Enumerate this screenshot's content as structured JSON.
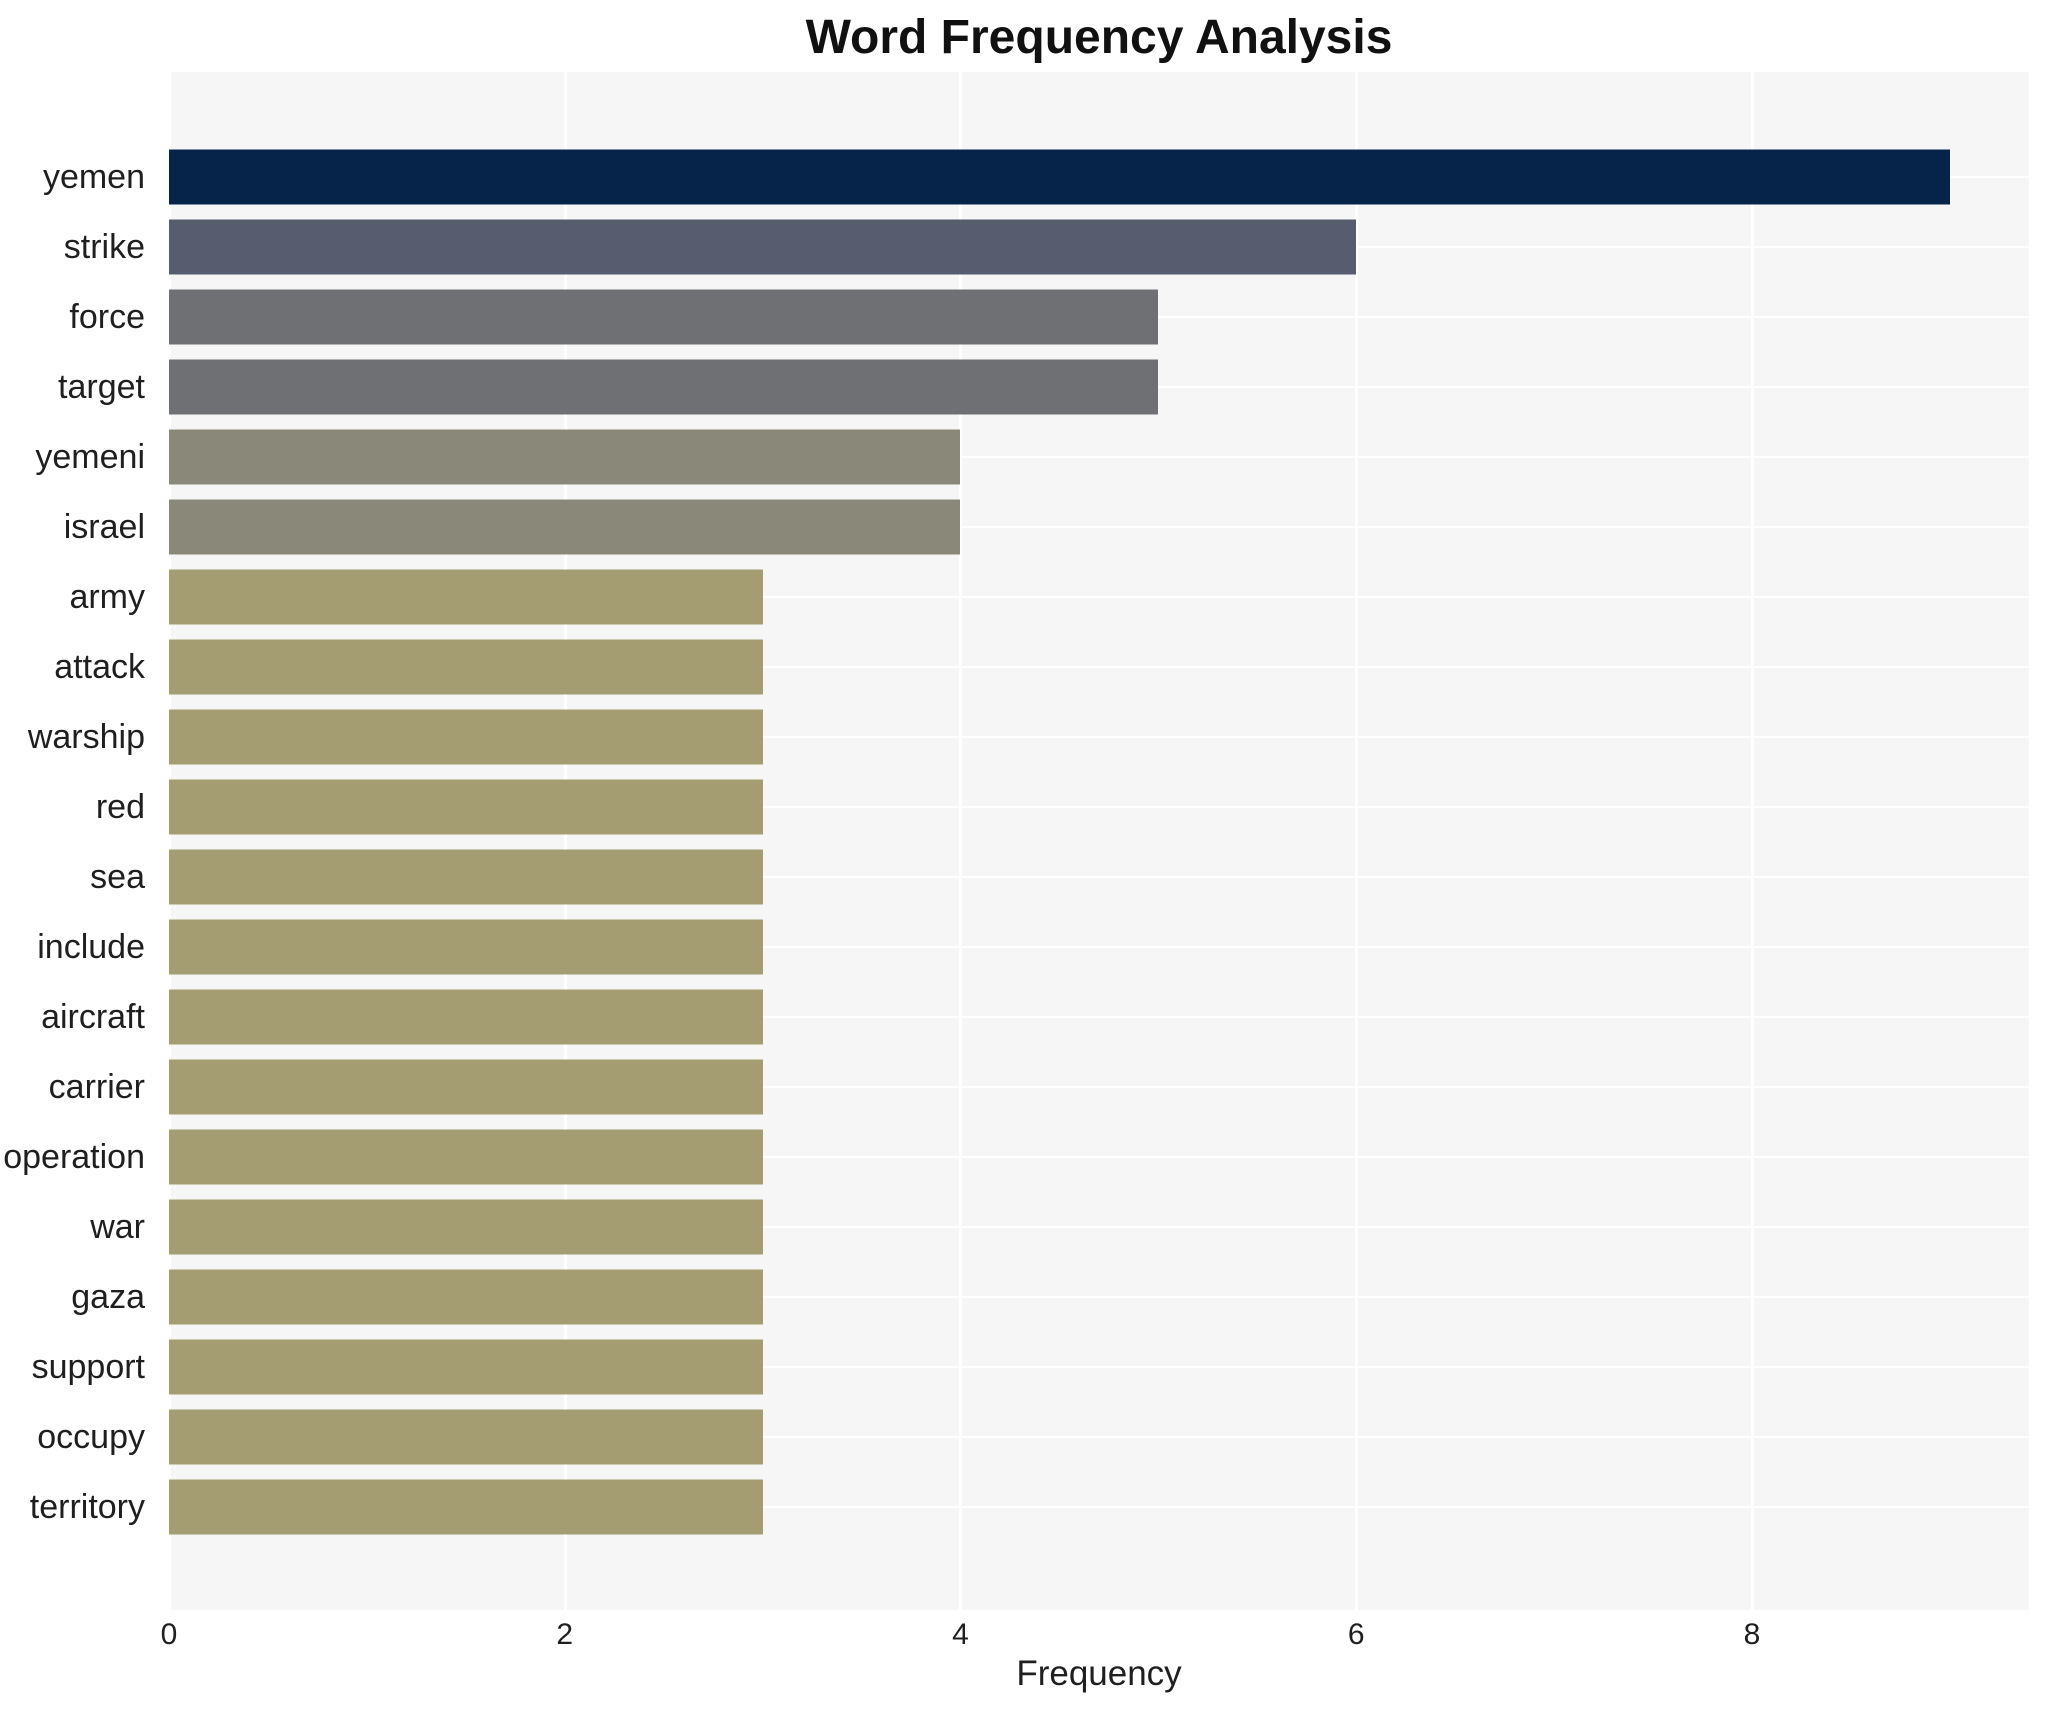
{
  "chart_data": {
    "type": "bar",
    "orientation": "horizontal",
    "title": "Word Frequency Analysis",
    "xlabel": "Frequency",
    "ylabel": "",
    "xlim": [
      0,
      9.4
    ],
    "xticks": [
      0,
      2,
      4,
      6,
      8
    ],
    "grid": true,
    "legend": "none",
    "plot_background": "#f6f6f7",
    "grid_color": "#ffffff",
    "text_color": "#1f1f1f",
    "categories": [
      "yemen",
      "strike",
      "force",
      "target",
      "yemeni",
      "israel",
      "army",
      "attack",
      "warship",
      "red",
      "sea",
      "include",
      "aircraft",
      "carrier",
      "operation",
      "war",
      "gaza",
      "support",
      "occupy",
      "territory"
    ],
    "values": [
      9,
      6,
      5,
      5,
      4,
      4,
      3,
      3,
      3,
      3,
      3,
      3,
      3,
      3,
      3,
      3,
      3,
      3,
      3,
      3
    ],
    "colors": [
      "#062449",
      "#575d6e",
      "#6f7073",
      "#6f7073",
      "#8a8878",
      "#8a8878",
      "#a49d71",
      "#a49d71",
      "#a49d71",
      "#a49d71",
      "#a49d71",
      "#a49d71",
      "#a49d71",
      "#a49d71",
      "#a49d71",
      "#a49d71",
      "#a49d71",
      "#a49d71",
      "#a49d71",
      "#a49d71"
    ]
  }
}
